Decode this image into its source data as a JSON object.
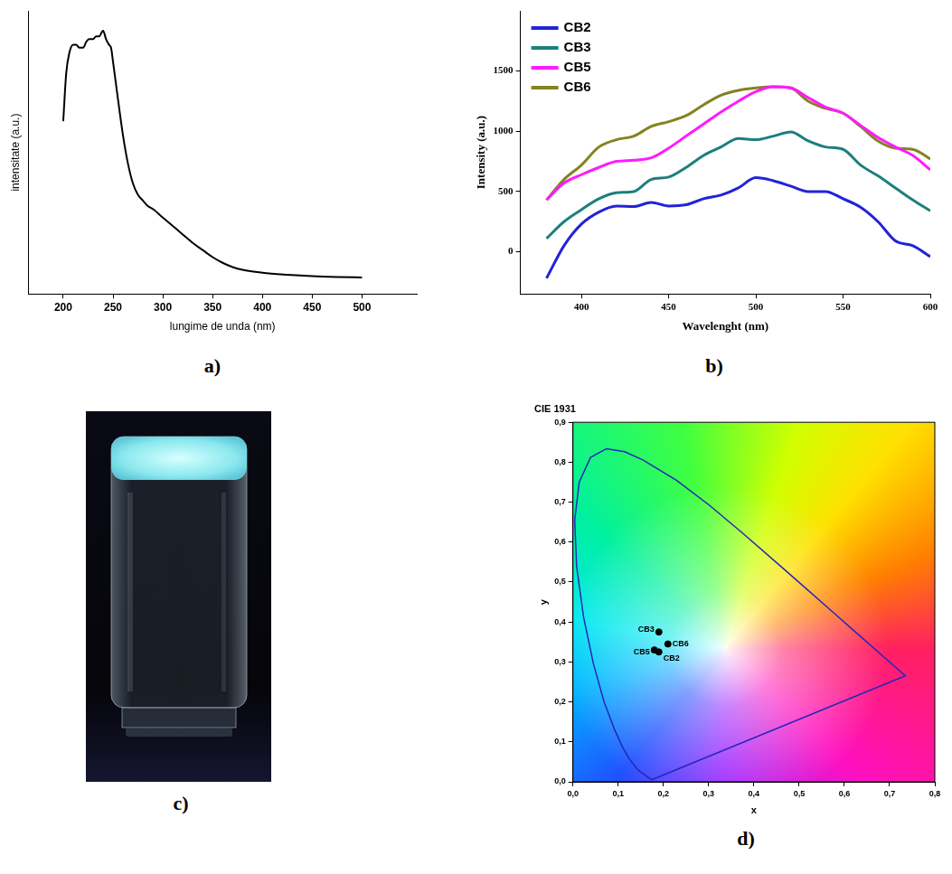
{
  "chart_data": [
    {
      "panel": "a)",
      "type": "line",
      "x_label": "lungime de unda (nm)",
      "y_label": "intensitate (a.u.)",
      "color": "#000000",
      "x": [
        200,
        203,
        206,
        210,
        213,
        216,
        220,
        223,
        226,
        230,
        233,
        236,
        240,
        243,
        246,
        248,
        250,
        253,
        256,
        260,
        265,
        270,
        275,
        280,
        285,
        290,
        300,
        310,
        320,
        330,
        340,
        350,
        360,
        370,
        380,
        400,
        425,
        450,
        475,
        500
      ],
      "values": [
        0.61,
        0.78,
        0.85,
        0.88,
        0.88,
        0.87,
        0.87,
        0.89,
        0.9,
        0.9,
        0.91,
        0.91,
        0.93,
        0.9,
        0.88,
        0.87,
        0.82,
        0.74,
        0.66,
        0.56,
        0.46,
        0.39,
        0.35,
        0.33,
        0.31,
        0.3,
        0.27,
        0.24,
        0.21,
        0.18,
        0.155,
        0.13,
        0.11,
        0.095,
        0.085,
        0.075,
        0.068,
        0.063,
        0.06,
        0.058
      ],
      "xlim": [
        165,
        555
      ],
      "xticks": [
        200,
        250,
        300,
        350,
        400,
        450,
        500
      ],
      "ylim": [
        0,
        1
      ],
      "tick_labels": "x",
      "grid": false
    },
    {
      "panel": "b)",
      "type": "line",
      "x_label": "Wavelenght (nm)",
      "y_label": "Intensity (a.u.)",
      "x": [
        380,
        390,
        400,
        410,
        420,
        430,
        440,
        450,
        460,
        470,
        480,
        490,
        500,
        510,
        520,
        530,
        540,
        550,
        560,
        570,
        580,
        590,
        600
      ],
      "series": [
        {
          "name": "CB2",
          "color": "#2323d8",
          "values": [
            -220,
            50,
            230,
            330,
            380,
            375,
            410,
            380,
            390,
            440,
            470,
            530,
            615,
            590,
            545,
            500,
            500,
            440,
            370,
            250,
            90,
            50,
            -40
          ]
        },
        {
          "name": "CB3",
          "color": "#1c7f7f",
          "values": [
            110,
            250,
            350,
            440,
            490,
            500,
            600,
            620,
            700,
            800,
            870,
            940,
            930,
            960,
            995,
            920,
            870,
            850,
            720,
            630,
            530,
            430,
            340
          ]
        },
        {
          "name": "CB5",
          "color": "#ff1aff",
          "values": [
            430,
            570,
            640,
            700,
            750,
            760,
            780,
            860,
            960,
            1060,
            1160,
            1250,
            1330,
            1370,
            1360,
            1280,
            1200,
            1150,
            1050,
            950,
            870,
            800,
            680
          ]
        },
        {
          "name": "CB6",
          "color": "#838320",
          "values": [
            430,
            600,
            720,
            870,
            930,
            960,
            1040,
            1080,
            1130,
            1220,
            1300,
            1340,
            1360,
            1370,
            1360,
            1250,
            1190,
            1150,
            1040,
            920,
            860,
            850,
            770
          ]
        }
      ],
      "xlim": [
        365,
        600
      ],
      "xticks": [
        400,
        450,
        500,
        550,
        600
      ],
      "ylim": [
        -350,
        2000
      ],
      "yticks": [
        0,
        500,
        1000,
        1500
      ],
      "legend": "upper left",
      "grid": false
    },
    {
      "panel": "d)",
      "type": "scatter",
      "title": "CIE 1931",
      "x_label": "x",
      "y_label": "y",
      "color": "#000000",
      "points": [
        {
          "label": "CB3",
          "x": 0.19,
          "y": 0.375
        },
        {
          "label": "CB6",
          "x": 0.21,
          "y": 0.345
        },
        {
          "label": "CB5",
          "x": 0.18,
          "y": 0.33
        },
        {
          "label": "CB2",
          "x": 0.19,
          "y": 0.325
        }
      ],
      "locus": {
        "color": "#2626b8",
        "x": [
          0.1741,
          0.144,
          0.1241,
          0.1096,
          0.0913,
          0.0687,
          0.0454,
          0.0235,
          0.0082,
          0.0039,
          0.0139,
          0.0389,
          0.0743,
          0.1142,
          0.1547,
          0.2296,
          0.3016,
          0.3731,
          0.4441,
          0.5125,
          0.5752,
          0.627,
          0.6915,
          0.7347,
          0.1741
        ],
        "y": [
          0.005,
          0.0297,
          0.0578,
          0.0868,
          0.1327,
          0.2007,
          0.295,
          0.4127,
          0.5384,
          0.6548,
          0.7502,
          0.812,
          0.8338,
          0.8262,
          0.8059,
          0.7543,
          0.6923,
          0.6245,
          0.5547,
          0.4866,
          0.4242,
          0.3725,
          0.3083,
          0.2653,
          0.005
        ]
      },
      "xlim": [
        0,
        0.8
      ],
      "xticks": [
        {
          "value": 0,
          "label": "0,0"
        },
        {
          "value": 0.1,
          "label": "0,1"
        },
        {
          "value": 0.2,
          "label": "0,2"
        },
        {
          "value": 0.3,
          "label": "0,3"
        },
        {
          "value": 0.4,
          "label": "0,4"
        },
        {
          "value": 0.5,
          "label": "0,5"
        },
        {
          "value": 0.6,
          "label": "0,6"
        },
        {
          "value": 0.7,
          "label": "0,7"
        },
        {
          "value": 0.8,
          "label": "0,8"
        }
      ],
      "ylim": [
        0,
        0.9
      ],
      "yticks": [
        {
          "value": 0,
          "label": "0,0"
        },
        {
          "value": 0.1,
          "label": "0,1"
        },
        {
          "value": 0.2,
          "label": "0,2"
        },
        {
          "value": 0.3,
          "label": "0,3"
        },
        {
          "value": 0.4,
          "label": "0,4"
        },
        {
          "value": 0.5,
          "label": "0,5"
        },
        {
          "value": 0.6,
          "label": "0,6"
        },
        {
          "value": 0.7,
          "label": "0,7"
        },
        {
          "value": 0.8,
          "label": "0,8"
        },
        {
          "value": 0.9,
          "label": "0,9"
        }
      ],
      "grid": false
    }
  ],
  "photo": {
    "panel": "c)"
  }
}
